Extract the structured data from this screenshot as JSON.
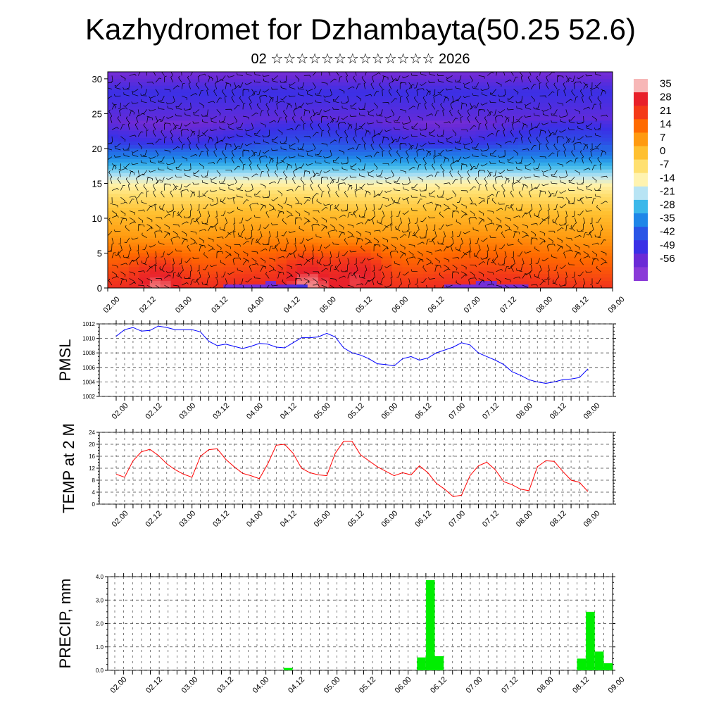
{
  "title": "Kazhydromet for Dzhambayta(50.25 52.6)",
  "subtitle": "02 ☆☆☆☆☆☆☆☆☆☆☆☆☆ 2026",
  "time_labels": [
    "02.00",
    "02.12",
    "03.00",
    "03.12",
    "04.00",
    "04.12",
    "05.00",
    "05.12",
    "06.00",
    "06.12",
    "07.00",
    "07.12",
    "08.00",
    "08.12",
    "09.00"
  ],
  "chart_data": [
    {
      "type": "heatmap",
      "name": "cross_section",
      "ylabel": "",
      "y_ticks": [
        0,
        5,
        10,
        15,
        20,
        25,
        30
      ],
      "ylim": [
        0,
        31
      ],
      "colorbar_labels": [
        "35",
        "28",
        "21",
        "14",
        "7",
        "0",
        "-7",
        "-14",
        "-21",
        "-28",
        "-35",
        "-42",
        "-49",
        "-56"
      ],
      "colorbar_colors": [
        "#f7b7b7",
        "#e8202a",
        "#f43a18",
        "#ff6a00",
        "#ff9a10",
        "#ffc030",
        "#ffe070",
        "#fff3b0",
        "#b8e4f4",
        "#3cb8ea",
        "#1f86e8",
        "#2a55e6",
        "#3a30e6",
        "#6b2ad6",
        "#8a3ad8"
      ],
      "profile": [
        {
          "height": 0,
          "temp": 26
        },
        {
          "height": 2,
          "temp": 20
        },
        {
          "height": 5,
          "temp": 13
        },
        {
          "height": 8,
          "temp": 6
        },
        {
          "height": 11,
          "temp": 0
        },
        {
          "height": 13.5,
          "temp": -7
        },
        {
          "height": 15,
          "temp": -14
        },
        {
          "height": 17,
          "temp": -25
        },
        {
          "height": 19,
          "temp": -38
        },
        {
          "height": 21,
          "temp": -48
        },
        {
          "height": 24,
          "temp": -55
        },
        {
          "height": 28,
          "temp": -50
        },
        {
          "height": 31,
          "temp": -58
        }
      ],
      "warm_cores": [
        {
          "x": 0.7,
          "height": 1.5,
          "temp": 33
        },
        {
          "x": 2.8,
          "height": 2,
          "temp": 30
        },
        {
          "x": 3.5,
          "height": 2.5,
          "temp": 31
        }
      ]
    },
    {
      "type": "line",
      "name": "pmsl",
      "ylabel": "PMSL",
      "ylim": [
        1002,
        1012
      ],
      "y_ticks": [
        1002,
        1004,
        1006,
        1008,
        1010,
        1012
      ],
      "x_step_hours": 3,
      "color": "#0000ff",
      "values": [
        1010.3,
        1011.2,
        1011.5,
        1011.0,
        1011.1,
        1011.7,
        1011.5,
        1011.2,
        1011.2,
        1011.2,
        1010.9,
        1009.6,
        1009.0,
        1009.2,
        1008.9,
        1008.6,
        1008.9,
        1009.3,
        1009.2,
        1008.8,
        1008.7,
        1009.4,
        1010.1,
        1010.1,
        1010.2,
        1010.7,
        1010.2,
        1008.7,
        1008.0,
        1007.7,
        1007.2,
        1006.5,
        1006.4,
        1006.2,
        1007.2,
        1007.5,
        1007.0,
        1007.3,
        1008.0,
        1008.4,
        1008.8,
        1009.4,
        1009.1,
        1008.0,
        1007.5,
        1007.0,
        1006.4,
        1005.4,
        1004.9,
        1004.3,
        1004.0,
        1003.8,
        1004.0,
        1004.3,
        1004.4,
        1004.6,
        1005.8
      ]
    },
    {
      "type": "line",
      "name": "temp_2m",
      "ylabel": "TEMP at 2 M",
      "ylim": [
        0,
        24
      ],
      "y_ticks": [
        0,
        4,
        8,
        12,
        16,
        20,
        24
      ],
      "x_step_hours": 3,
      "color": "#ff0000",
      "values": [
        10.0,
        9.0,
        14.5,
        17.5,
        18.3,
        16.3,
        13.5,
        11.5,
        10.0,
        9.0,
        16.0,
        18.2,
        18.5,
        15.0,
        12.5,
        10.3,
        9.5,
        8.5,
        13.5,
        19.7,
        20.0,
        17.0,
        12.0,
        10.5,
        9.8,
        9.5,
        17.0,
        21.0,
        21.0,
        16.5,
        14.5,
        12.5,
        11.0,
        9.5,
        10.5,
        9.8,
        12.8,
        10.5,
        7.0,
        5.0,
        2.5,
        3.0,
        9.5,
        12.8,
        14.0,
        11.5,
        7.5,
        6.5,
        5.0,
        4.5,
        12.5,
        14.5,
        14.3,
        11.0,
        8.0,
        7.3,
        4.2
      ]
    },
    {
      "type": "bar",
      "name": "precip",
      "ylabel": "PRECIP, mm",
      "ylim": [
        0,
        4
      ],
      "y_ticks": [
        "0.0",
        "1.0",
        "2.0",
        "3.0",
        "4.0"
      ],
      "x_step_hours": 3,
      "color": "#00ee00",
      "bars": [
        {
          "start_hours": 57,
          "value": 0.1
        },
        {
          "start_hours": 102,
          "value": 0.55
        },
        {
          "start_hours": 105,
          "value": 3.85
        },
        {
          "start_hours": 108,
          "value": 0.6
        },
        {
          "start_hours": 156,
          "value": 0.5
        },
        {
          "start_hours": 159,
          "value": 2.5
        },
        {
          "start_hours": 162,
          "value": 0.8
        },
        {
          "start_hours": 165,
          "value": 0.3
        }
      ]
    }
  ]
}
